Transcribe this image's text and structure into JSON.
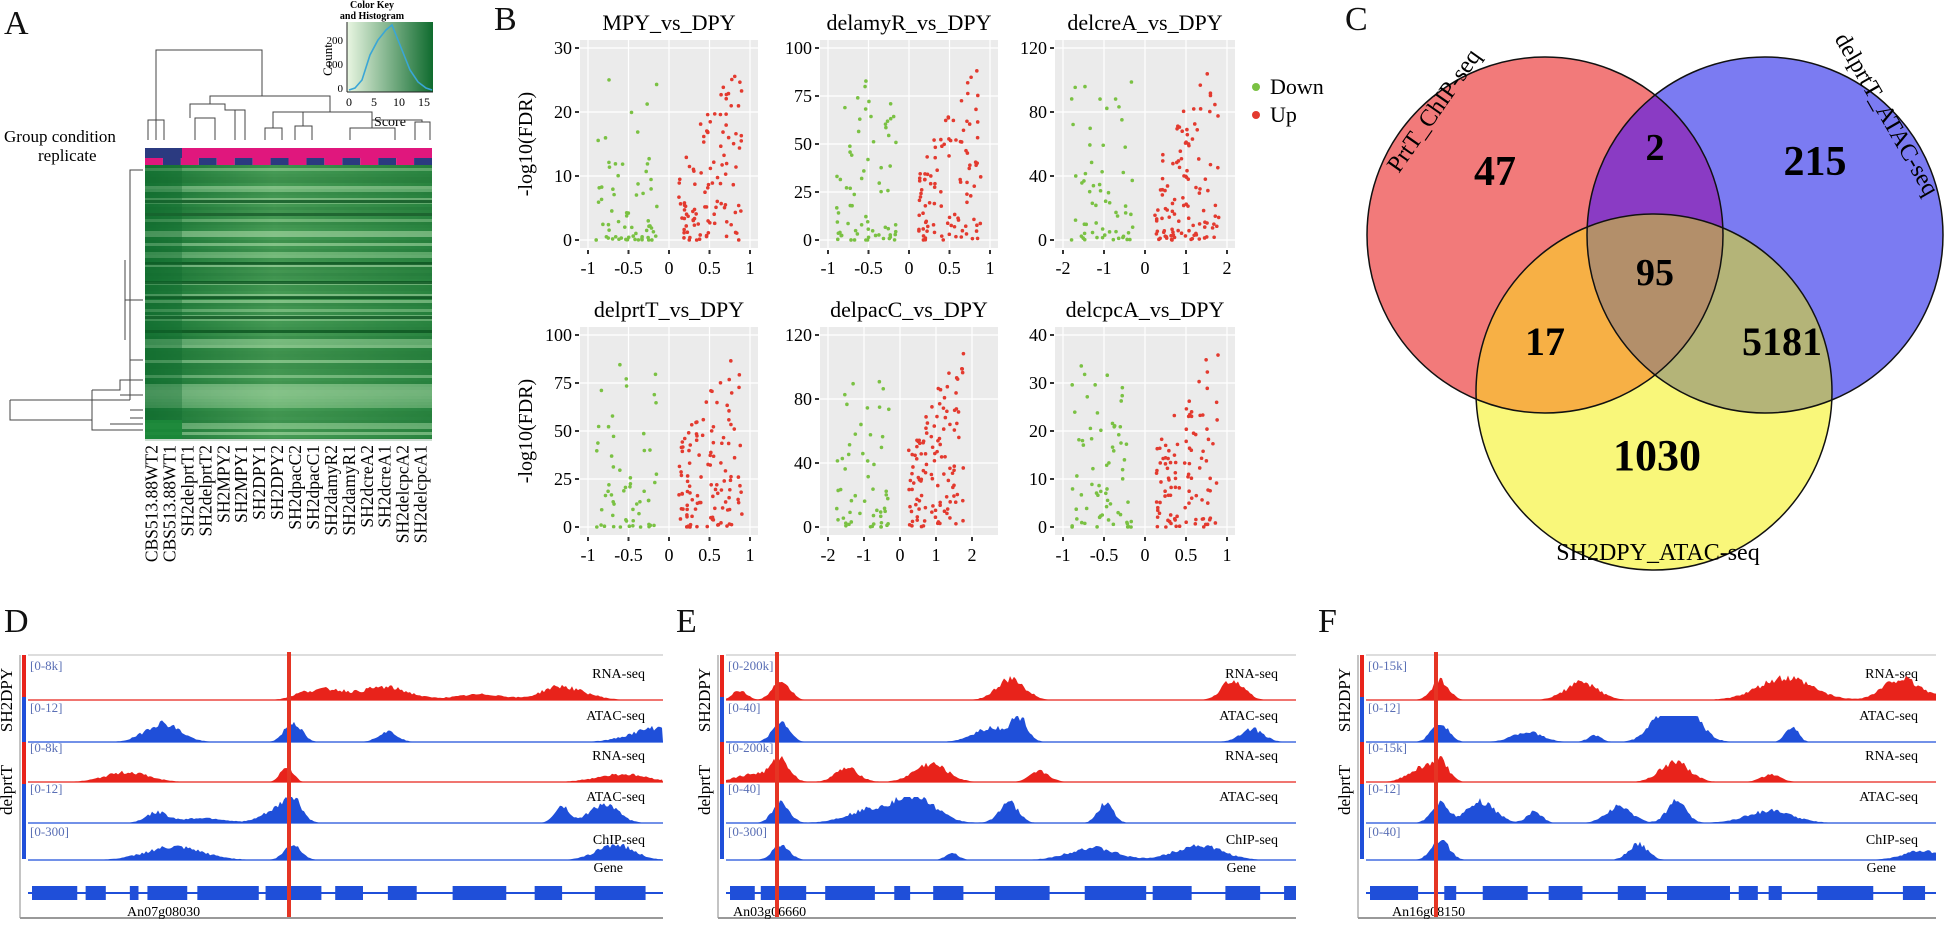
{
  "figure": {
    "panels": [
      "A",
      "B",
      "C",
      "D",
      "E",
      "F"
    ]
  },
  "panelA": {
    "color_key_title": "Color Key\nand Histogram",
    "color_key_title_line1": "Color Key",
    "color_key_title_line2": "and Histogram",
    "count_label": "Count",
    "count_ticks": [
      "0",
      "100",
      "200"
    ],
    "score_label": "Score",
    "score_ticks": [
      "0",
      "5",
      "10",
      "15"
    ],
    "group_label_1": "Group condition",
    "group_label_2": "replicate",
    "samples": [
      "CBS513.88WT2",
      "CBS513.88WT1",
      "SH2delprtT1",
      "SH2delprtT2",
      "SH2MPY2",
      "SH2MPY1",
      "SH2DPY1",
      "SH2DPY2",
      "SH2dpacC2",
      "SH2dpacC1",
      "SH2damyR2",
      "SH2damyR1",
      "SH2dcreA2",
      "SH2dcreA1",
      "SH2delcpcA2",
      "SH2delcpcA1"
    ],
    "colors": {
      "heat_dark": "#0f6b2e",
      "heat_light": "#d6efc9",
      "group_magenta": "#e0177d",
      "group_navy": "#2b3a80"
    }
  },
  "chart_data": [
    {
      "type": "scatter",
      "title": "MPY_vs_DPY",
      "xlabel": "",
      "ylabel": "-log10(FDR)",
      "xlim": [
        -1,
        1
      ],
      "ylim": [
        0,
        30
      ],
      "xticks": [
        "-1",
        "-0.5",
        "0",
        "0.5",
        "1"
      ],
      "yticks": [
        "0",
        "10",
        "20",
        "30"
      ],
      "series": [
        {
          "name": "Down",
          "color": "#7ac143"
        },
        {
          "name": "Up",
          "color": "#e33a2f"
        }
      ]
    },
    {
      "type": "scatter",
      "title": "delamyR_vs_DPY",
      "xlabel": "",
      "ylabel": "",
      "xlim": [
        -1,
        1
      ],
      "ylim": [
        0,
        100
      ],
      "xticks": [
        "-1",
        "-0.5",
        "0",
        "0.5",
        "1"
      ],
      "yticks": [
        "0",
        "25",
        "50",
        "75",
        "100"
      ],
      "series": [
        {
          "name": "Down",
          "color": "#7ac143"
        },
        {
          "name": "Up",
          "color": "#e33a2f"
        }
      ]
    },
    {
      "type": "scatter",
      "title": "delcreA_vs_DPY",
      "xlabel": "",
      "ylabel": "",
      "xlim": [
        -2,
        2
      ],
      "ylim": [
        0,
        120
      ],
      "xticks": [
        "-2",
        "-1",
        "0",
        "1",
        "2"
      ],
      "yticks": [
        "0",
        "40",
        "80",
        "120"
      ],
      "series": [
        {
          "name": "Down",
          "color": "#7ac143"
        },
        {
          "name": "Up",
          "color": "#e33a2f"
        }
      ]
    },
    {
      "type": "scatter",
      "title": "delprtT_vs_DPY",
      "xlabel": "",
      "ylabel": "-log10(FDR)",
      "xlim": [
        -1,
        1
      ],
      "ylim": [
        0,
        100
      ],
      "xticks": [
        "-1",
        "-0.5",
        "0",
        "0.5",
        "1"
      ],
      "yticks": [
        "0",
        "25",
        "50",
        "75",
        "100"
      ],
      "series": [
        {
          "name": "Down",
          "color": "#7ac143"
        },
        {
          "name": "Up",
          "color": "#e33a2f"
        }
      ]
    },
    {
      "type": "scatter",
      "title": "delpacC_vs_DPY",
      "xlabel": "",
      "ylabel": "",
      "xlim": [
        -2,
        2.5
      ],
      "ylim": [
        0,
        120
      ],
      "xticks": [
        "-2",
        "-1",
        "0",
        "1",
        "2"
      ],
      "yticks": [
        "0",
        "40",
        "80",
        "120"
      ],
      "series": [
        {
          "name": "Down",
          "color": "#7ac143"
        },
        {
          "name": "Up",
          "color": "#e33a2f"
        }
      ]
    },
    {
      "type": "scatter",
      "title": "delcpcA_vs_DPY",
      "xlabel": "",
      "ylabel": "",
      "xlim": [
        -1,
        1
      ],
      "ylim": [
        0,
        40
      ],
      "xticks": [
        "-1",
        "-0.5",
        "0",
        "0.5",
        "1"
      ],
      "yticks": [
        "0",
        "10",
        "20",
        "30",
        "40"
      ],
      "series": [
        {
          "name": "Down",
          "color": "#7ac143"
        },
        {
          "name": "Up",
          "color": "#e33a2f"
        }
      ]
    }
  ],
  "legendB": {
    "items": [
      {
        "label": "Down",
        "color": "#7ac143"
      },
      {
        "label": "Up",
        "color": "#e33a2f"
      }
    ]
  },
  "venn": {
    "sets": [
      {
        "label": "PrtT_ChIP-seq",
        "color": "#f08080"
      },
      {
        "label": "delprtT_ATAC-seq",
        "color": "#7b7bf2"
      },
      {
        "label": "SH2DPY_ATAC-seq",
        "color": "#f9f77a"
      }
    ],
    "regions": {
      "prtT_only": "47",
      "prtT_delprtT": "2",
      "delprtT_only": "215",
      "all_three": "95",
      "prtT_sh2dpy": "17",
      "delprtT_sh2dpy": "5181",
      "sh2dpy_only": "1030"
    }
  },
  "tracks": {
    "D": {
      "group_top": "SH2DPY",
      "group_bottom": "delprtT",
      "gene": "An07g08030",
      "rows": [
        {
          "range": "[0-8k]",
          "label": "RNA-seq"
        },
        {
          "range": "[0-12]",
          "label": "ATAC-seq"
        },
        {
          "range": "[0-8k]",
          "label": "RNA-seq"
        },
        {
          "range": "[0-12]",
          "label": "ATAC-seq"
        },
        {
          "range": "[0-300]",
          "label": "ChIP-seq"
        }
      ],
      "gene_label": "Gene"
    },
    "E": {
      "group_top": "SH2DPY",
      "group_bottom": "delprtT",
      "gene": "An03g06660",
      "rows": [
        {
          "range": "[0-200k]",
          "label": "RNA-seq"
        },
        {
          "range": "[0-40]",
          "label": "ATAC-seq"
        },
        {
          "range": "[0-200k]",
          "label": "RNA-seq"
        },
        {
          "range": "[0-40]",
          "label": "ATAC-seq"
        },
        {
          "range": "[0-300]",
          "label": "ChIP-seq"
        }
      ],
      "gene_label": "Gene"
    },
    "F": {
      "group_top": "SH2DPY",
      "group_bottom": "delprtT",
      "gene": "An16g08150",
      "rows": [
        {
          "range": "[0-15k]",
          "label": "RNA-seq"
        },
        {
          "range": "[0-12]",
          "label": "ATAC-seq"
        },
        {
          "range": "[0-15k]",
          "label": "RNA-seq"
        },
        {
          "range": "[0-12]",
          "label": "ATAC-seq"
        },
        {
          "range": "[0-40]",
          "label": "ChIP-seq"
        }
      ],
      "gene_label": "Gene"
    },
    "colors": {
      "rna": "#e8231b",
      "atac": "#1f4fd9",
      "marker": "#e53524",
      "range_text": "#5a6fb5"
    }
  }
}
